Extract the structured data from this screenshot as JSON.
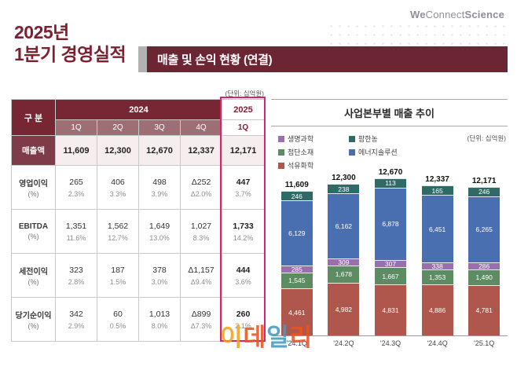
{
  "logo": {
    "part1": "We",
    "part2": "Connect",
    "part3": "Science"
  },
  "page_title": {
    "line1": "2025년",
    "line2": "1분기 경영실적"
  },
  "section_header": "매출 및 손익 현황 (연결)",
  "unit_note": "(단위: 십억원)",
  "colors": {
    "header_maroon": "#772633",
    "subheader_rose": "#9d6e73",
    "highlight_pink": "#d6246e",
    "title_maroon": "#7d2030"
  },
  "table": {
    "col_group_label": "구 분",
    "year_2024": "2024",
    "year_2025": "2025",
    "quarters_2024": [
      "1Q",
      "2Q",
      "3Q",
      "4Q"
    ],
    "quarter_2025": "1Q",
    "rows": [
      {
        "label": "매출액",
        "sub": "",
        "values": [
          "11,609",
          "12,300",
          "12,670",
          "12,337"
        ],
        "value_2025": "12,171"
      },
      {
        "label": "영업이익",
        "sub": "(%)",
        "values": [
          "265",
          "406",
          "498",
          "Δ252"
        ],
        "pcts": [
          "2.3%",
          "3.3%",
          "3.9%",
          "Δ2.0%"
        ],
        "value_2025": "447",
        "pct_2025": "3.7%"
      },
      {
        "label": "EBITDA",
        "sub": "(%)",
        "values": [
          "1,351",
          "1,562",
          "1,649",
          "1,027"
        ],
        "pcts": [
          "11.6%",
          "12.7%",
          "13.0%",
          "8.3%"
        ],
        "value_2025": "1,733",
        "pct_2025": "14.2%"
      },
      {
        "label": "세전이익",
        "sub": "(%)",
        "values": [
          "323",
          "187",
          "378",
          "Δ1,157"
        ],
        "pcts": [
          "2.8%",
          "1.5%",
          "3.0%",
          "Δ9.4%"
        ],
        "value_2025": "444",
        "pct_2025": "3.6%"
      },
      {
        "label": "당기순이익",
        "sub": "(%)",
        "values": [
          "342",
          "60",
          "1,013",
          "Δ899"
        ],
        "pcts": [
          "2.9%",
          "0.5%",
          "8.0%",
          "Δ7.3%"
        ],
        "value_2025": "260",
        "pct_2025": "2.1%"
      }
    ]
  },
  "chart_data": {
    "type": "bar",
    "stacked": true,
    "title": "사업본부별 매출 추이",
    "unit": "(단위: 십억원)",
    "categories": [
      "'24.1Q",
      "'24.2Q",
      "'24.3Q",
      "'24.4Q",
      "'25.1Q"
    ],
    "totals": [
      "11,609",
      "12,300",
      "12,670",
      "12,337",
      "12,171"
    ],
    "legend_order": [
      "생명과학",
      "팜한농",
      "첨단소재",
      "에너지솔루션",
      "석유화학"
    ],
    "legend_position": "top-left",
    "series": [
      {
        "name": "석유화학",
        "color": "#b0574d",
        "values": [
          4461,
          4982,
          4831,
          4886,
          4781
        ],
        "labels": [
          "4,461",
          "4,982",
          "4,831",
          "4,886",
          "4,781"
        ]
      },
      {
        "name": "첨단소재",
        "color": "#5e8c62",
        "values": [
          1545,
          1678,
          1667,
          1353,
          1490
        ],
        "labels": [
          "1,545",
          "1,678",
          "1,667",
          "1,353",
          "1,490"
        ]
      },
      {
        "name": "생명과학",
        "color": "#9a6fae",
        "values": [
          285,
          309,
          307,
          338,
          286
        ],
        "labels": [
          "285",
          "309",
          "307",
          "338",
          "286"
        ]
      },
      {
        "name": "에너지솔루션",
        "color": "#4a6fb0",
        "values": [
          6129,
          6162,
          6878,
          6451,
          6265
        ],
        "labels": [
          "6,129",
          "6,162",
          "6,878",
          "6,451",
          "6,265"
        ]
      },
      {
        "name": "팜한농",
        "color": "#2f6b66",
        "values": [
          246,
          238,
          113,
          165,
          246
        ],
        "labels": [
          "246",
          "238",
          "113",
          "165",
          "246"
        ]
      }
    ]
  },
  "watermark": {
    "text": "이데일리",
    "colors": [
      "#f5a11a",
      "#e8541e",
      "#3f9cc8",
      "#e8541e"
    ]
  }
}
